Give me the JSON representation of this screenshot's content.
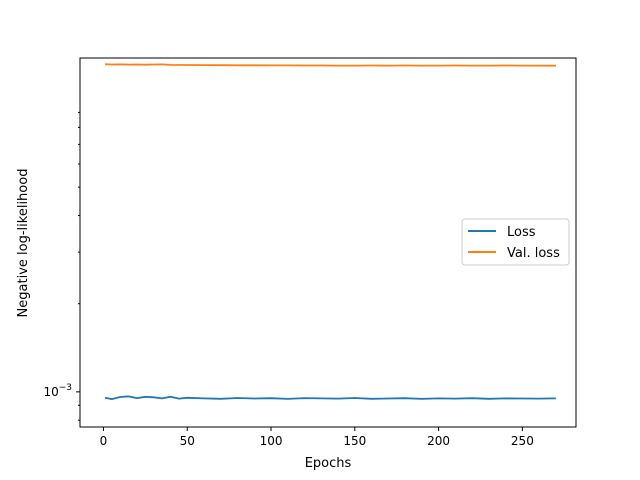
{
  "chart_data": {
    "type": "line",
    "title": "",
    "xlabel": "Epochs",
    "ylabel": "Negative log-likelihood",
    "xlim": [
      -14,
      282
    ],
    "ylim_log10": [
      -3.12,
      -1.86
    ],
    "yscale": "log",
    "grid": false,
    "legend_position": "center-right",
    "x_ticks": [
      0,
      50,
      100,
      150,
      200,
      250
    ],
    "y_ticks": [
      {
        "label_base": "10",
        "label_exp": "−3",
        "value": 0.001
      }
    ],
    "series": [
      {
        "name": "Loss",
        "color": "#1f77b4",
        "x": [
          1,
          5,
          10,
          15,
          20,
          25,
          30,
          35,
          40,
          45,
          50,
          60,
          70,
          80,
          90,
          100,
          110,
          120,
          130,
          140,
          150,
          160,
          170,
          180,
          190,
          200,
          210,
          220,
          230,
          240,
          250,
          260,
          270
        ],
        "y": [
          0.000955,
          0.000945,
          0.00096,
          0.000965,
          0.000952,
          0.000962,
          0.000958,
          0.00095,
          0.000963,
          0.000948,
          0.000954,
          0.00095,
          0.000947,
          0.000953,
          0.000949,
          0.000951,
          0.000946,
          0.000952,
          0.00095,
          0.000948,
          0.000953,
          0.000947,
          0.000949,
          0.000951,
          0.000946,
          0.00095,
          0.000948,
          0.000951,
          0.000947,
          0.00095,
          0.000949,
          0.000948,
          0.00095
        ]
      },
      {
        "name": "Val. loss",
        "color": "#ff7f0e",
        "x": [
          1,
          5,
          10,
          15,
          20,
          25,
          30,
          35,
          40,
          50,
          60,
          70,
          80,
          90,
          100,
          110,
          120,
          130,
          140,
          150,
          160,
          170,
          180,
          190,
          200,
          210,
          220,
          230,
          240,
          250,
          260,
          270
        ],
        "y": [
          0.01315,
          0.01312,
          0.01313,
          0.01311,
          0.01312,
          0.0131,
          0.01312,
          0.01313,
          0.01307,
          0.01306,
          0.01305,
          0.01304,
          0.01303,
          0.01303,
          0.01302,
          0.01302,
          0.01301,
          0.01301,
          0.013,
          0.013,
          0.01301,
          0.013,
          0.01301,
          0.013,
          0.013,
          0.01301,
          0.013,
          0.013,
          0.01301,
          0.013,
          0.013,
          0.01299
        ]
      }
    ]
  }
}
